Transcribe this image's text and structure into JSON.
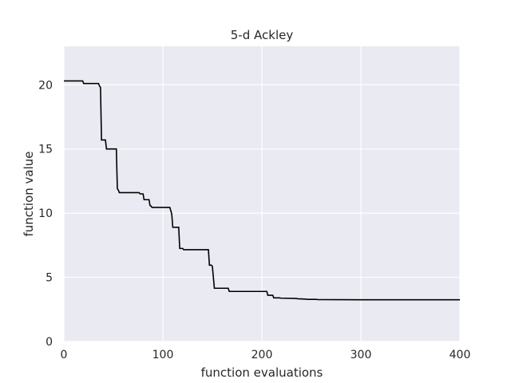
{
  "chart_data": {
    "type": "line",
    "title": "5-d Ackley",
    "xlabel": "function evaluations",
    "ylabel": "function value",
    "xlim": [
      0,
      400
    ],
    "ylim": [
      0,
      23
    ],
    "xticks": [
      0,
      100,
      200,
      300,
      400
    ],
    "yticks": [
      0,
      5,
      10,
      15,
      20
    ],
    "xtick_labels": [
      "0",
      "100",
      "200",
      "300",
      "400"
    ],
    "ytick_labels": [
      "0",
      "5",
      "10",
      "15",
      "20"
    ],
    "grid": true,
    "background": "#eaeaf2",
    "grid_color": "#ffffff",
    "line_color": "#000000",
    "series": [
      {
        "x": [
          0,
          19,
          20,
          35,
          36,
          37,
          38,
          42,
          43,
          53,
          54,
          55,
          56,
          76,
          77,
          80,
          81,
          86,
          87,
          88,
          89,
          107,
          108,
          109,
          110,
          113,
          114,
          116,
          117,
          120,
          121,
          146,
          147,
          149,
          150,
          152,
          153,
          166,
          167,
          205,
          206,
          211,
          212,
          218,
          219,
          235,
          236,
          245,
          246,
          255,
          256,
          300,
          400
        ],
        "y": [
          20.3,
          20.3,
          20.1,
          20.1,
          19.9,
          19.8,
          15.7,
          15.7,
          15.0,
          15.0,
          11.9,
          11.8,
          11.6,
          11.6,
          11.5,
          11.5,
          11.05,
          11.05,
          10.6,
          10.55,
          10.45,
          10.45,
          10.2,
          9.9,
          8.9,
          8.9,
          8.9,
          8.9,
          7.25,
          7.25,
          7.15,
          7.15,
          5.95,
          5.95,
          5.85,
          4.15,
          4.15,
          4.15,
          3.9,
          3.9,
          3.6,
          3.6,
          3.4,
          3.4,
          3.38,
          3.35,
          3.33,
          3.3,
          3.28,
          3.28,
          3.27,
          3.25,
          3.25
        ]
      }
    ]
  }
}
